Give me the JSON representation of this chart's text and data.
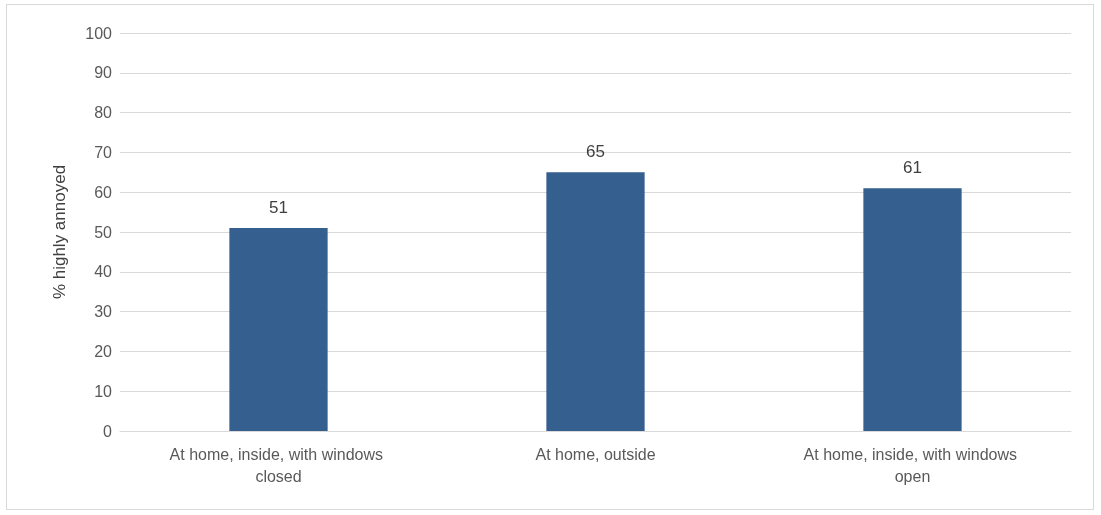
{
  "chart_data": {
    "type": "bar",
    "ylabel": "% highly annoyed",
    "categories": [
      "At home, inside, with windows closed",
      "At home, outside",
      "At home, inside, with windows open"
    ],
    "values": [
      51,
      65,
      61
    ],
    "color": "#355f8f",
    "ylim": [
      0,
      100
    ],
    "yticks": [
      0,
      10,
      20,
      30,
      40,
      50,
      60,
      70,
      80,
      90,
      100
    ],
    "grid": "y",
    "data_labels": true
  }
}
